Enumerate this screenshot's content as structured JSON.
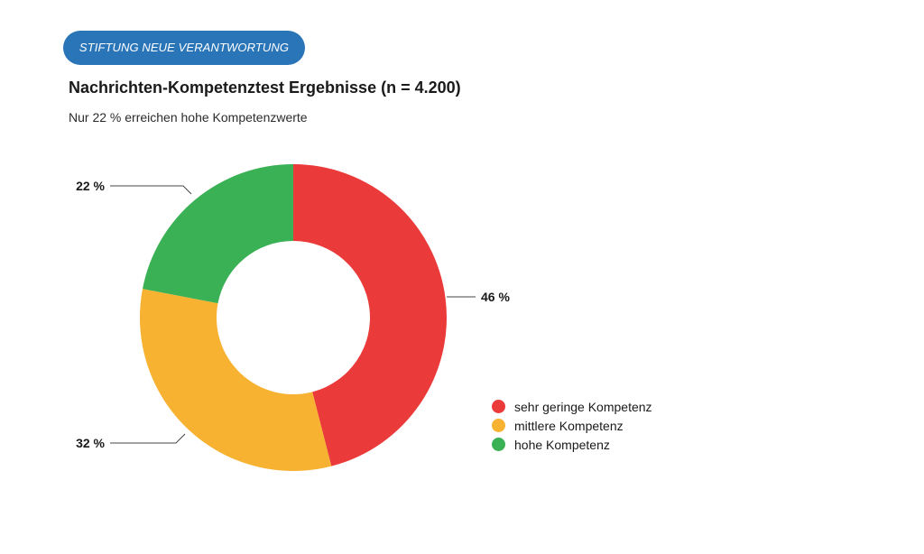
{
  "header": {
    "badge_label": "STIFTUNG NEUE VERANTWORTUNG",
    "title": "Nachrichten-Kompetenztest Ergebnisse (n = 4.200)",
    "subtitle": "Nur 22 % erreichen hohe Kompetenzwerte"
  },
  "chart_data": {
    "type": "pie",
    "style": "donut",
    "legend_position": "bottom-right",
    "slices": [
      {
        "name": "sehr geringe Kompetenz",
        "value": 46,
        "label": "46 %",
        "color": "#ea3a3a"
      },
      {
        "name": "mittlere Kompetenz",
        "value": 32,
        "label": "32 %",
        "color": "#f7b232"
      },
      {
        "name": "hohe Kompetenz",
        "value": 22,
        "label": "22 %",
        "color": "#3bb155"
      }
    ]
  }
}
